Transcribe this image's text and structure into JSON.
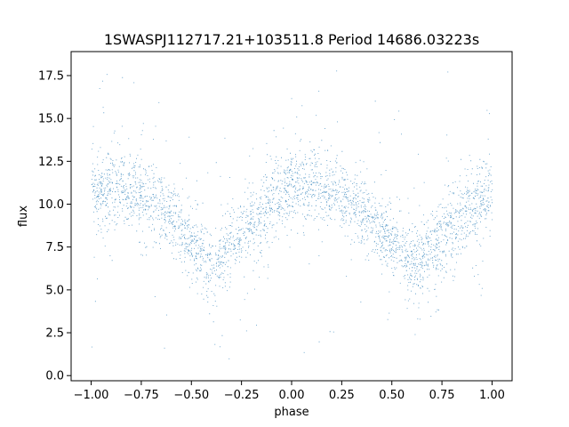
{
  "chart_data": {
    "type": "scatter",
    "title": "1SWASPJ112717.21+103511.8 Period 14686.03223s",
    "xlabel": "phase",
    "ylabel": "flux",
    "xlim": [
      -1.1,
      1.1
    ],
    "ylim": [
      -0.3,
      18.9
    ],
    "xticks": [
      -1.0,
      -0.75,
      -0.5,
      -0.25,
      0.0,
      0.25,
      0.5,
      0.75,
      1.0
    ],
    "xtick_labels": [
      "−1.00",
      "−0.75",
      "−0.50",
      "−0.25",
      "0.00",
      "0.25",
      "0.50",
      "0.75",
      "1.00"
    ],
    "yticks": [
      0.0,
      2.5,
      5.0,
      7.5,
      10.0,
      12.5,
      15.0,
      17.5
    ],
    "ytick_labels": [
      "0.0",
      "2.5",
      "5.0",
      "7.5",
      "10.0",
      "12.5",
      "15.0",
      "17.5"
    ],
    "grid": false,
    "legend": "none",
    "point_color": "#1f77b4",
    "series": [
      {
        "trend": {
          "x": [
            -1.0,
            -0.9,
            -0.8,
            -0.7,
            -0.6,
            -0.5,
            -0.4,
            -0.3,
            -0.2,
            -0.1,
            0.0,
            0.1,
            0.2,
            0.3,
            0.4,
            0.5,
            0.6,
            0.7,
            0.8,
            0.9,
            1.0
          ],
          "y": [
            10.8,
            11.1,
            10.9,
            10.3,
            9.3,
            7.8,
            6.5,
            7.6,
            9.0,
            10.3,
            11.0,
            11.2,
            10.8,
            10.1,
            9.1,
            7.7,
            6.4,
            7.4,
            8.9,
            10.0,
            10.6
          ]
        },
        "scatter_sigma": 1.0,
        "outlier_range": [
          0.5,
          18.7
        ]
      }
    ]
  }
}
